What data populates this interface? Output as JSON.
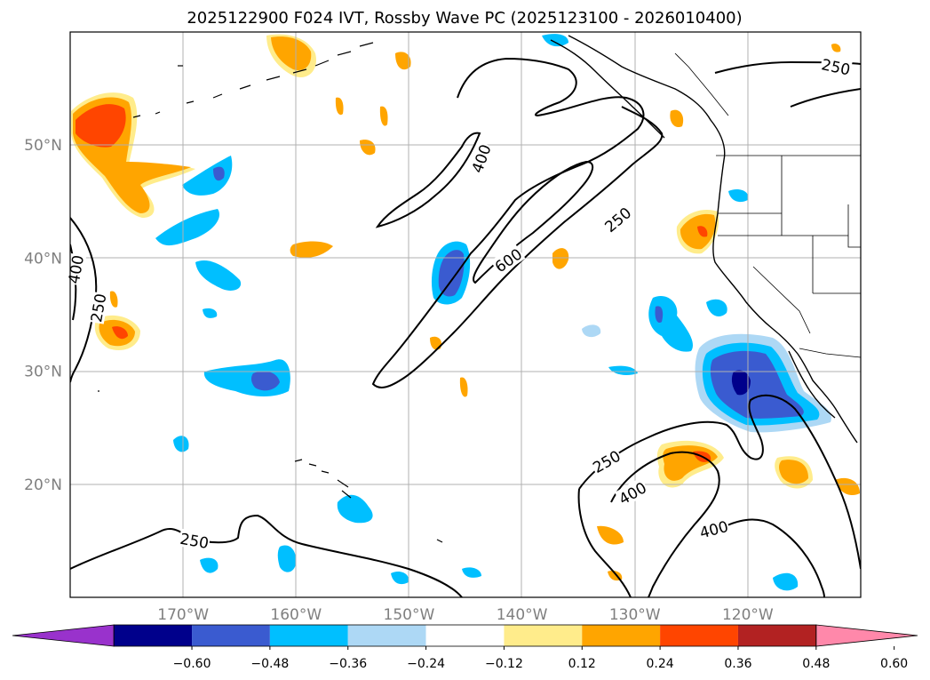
{
  "title": "2025122900 F024 IVT, Rossby Wave PC (2025123100 - 2026010400)",
  "map": {
    "lon_range": [
      -180,
      -110
    ],
    "lat_range": [
      10,
      60
    ],
    "lon_ticks": [
      {
        "value": -170,
        "label": "170°W"
      },
      {
        "value": -160,
        "label": "160°W"
      },
      {
        "value": -150,
        "label": "150°W"
      },
      {
        "value": -140,
        "label": "140°W"
      },
      {
        "value": -130,
        "label": "130°W"
      },
      {
        "value": -120,
        "label": "120°W"
      }
    ],
    "lat_ticks": [
      {
        "value": 20,
        "label": "20°N"
      },
      {
        "value": 30,
        "label": "30°N"
      },
      {
        "value": 40,
        "label": "40°N"
      },
      {
        "value": 50,
        "label": "50°N"
      }
    ],
    "grid": true,
    "contour_labels": [
      {
        "text": "250",
        "lon": -112.2,
        "lat": 56.9,
        "angle": 12
      },
      {
        "text": "400",
        "lon": -143.6,
        "lat": 48.8,
        "angle": -70
      },
      {
        "text": "250",
        "lon": -131.5,
        "lat": 43.4,
        "angle": -40
      },
      {
        "text": "600",
        "lon": -141.2,
        "lat": 39.8,
        "angle": -35
      },
      {
        "text": "400",
        "lon": -179.5,
        "lat": 39.0,
        "angle": -80
      },
      {
        "text": "250",
        "lon": -177.5,
        "lat": 35.6,
        "angle": -80
      },
      {
        "text": "250",
        "lon": -169.0,
        "lat": 15.0,
        "angle": 10
      },
      {
        "text": "250",
        "lon": -132.5,
        "lat": 22.0,
        "angle": -30
      },
      {
        "text": "400",
        "lon": -130.2,
        "lat": 19.2,
        "angle": -30
      },
      {
        "text": "400",
        "lon": -123.0,
        "lat": 16.0,
        "angle": -15
      }
    ]
  },
  "colorbar": {
    "colors": [
      "#9932cc",
      "#00008b",
      "#3a5bd0",
      "#00bfff",
      "#add8f5",
      "#ffffff",
      "#ffec8b",
      "#ffa500",
      "#ff4500",
      "#b22222",
      "#ff88aa"
    ],
    "labels": [
      "−0.60",
      "−0.48",
      "−0.36",
      "−0.24",
      "−0.12",
      "0.12",
      "0.24",
      "0.36",
      "0.48",
      "0.60"
    ]
  }
}
